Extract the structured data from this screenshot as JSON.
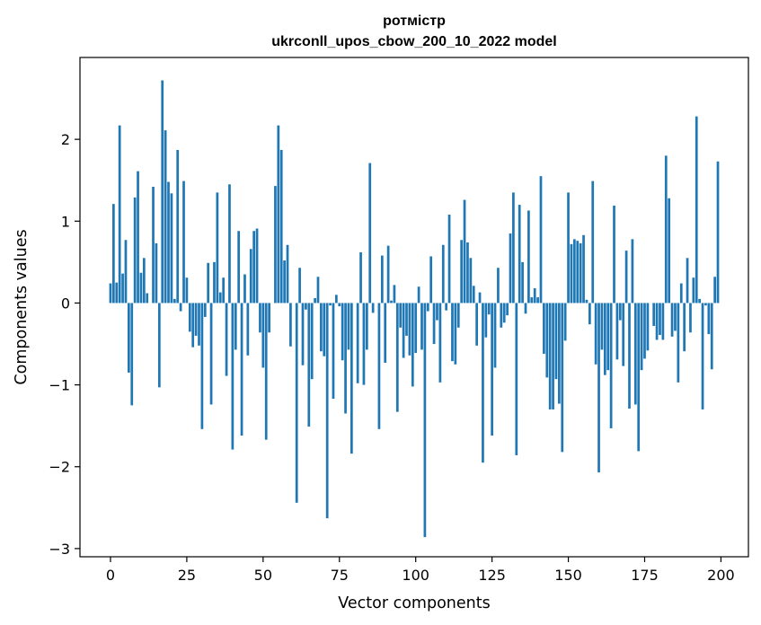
{
  "chart_data": {
    "type": "bar",
    "title_line1": "ротмістр",
    "title_line2": "ukrconll_upos_cbow_200_10_2022 model",
    "xlabel": "Vector components",
    "ylabel": "Components values",
    "xlim": [
      -10,
      209
    ],
    "ylim": [
      -3.1,
      3.0
    ],
    "xticks": [
      0,
      25,
      50,
      75,
      100,
      125,
      150,
      175,
      200
    ],
    "yticks": [
      -3,
      -2,
      -1,
      0,
      1,
      2
    ],
    "ytick_labels": [
      "−3",
      "−2",
      "−1",
      "0",
      "1",
      "2"
    ],
    "bar_color": "#1f77b4",
    "values": [
      0.24,
      1.21,
      0.25,
      2.17,
      0.36,
      0.77,
      -0.85,
      -1.25,
      1.29,
      1.61,
      0.37,
      0.55,
      0.12,
      0.0,
      1.42,
      0.73,
      -1.03,
      2.72,
      2.11,
      1.48,
      1.34,
      0.05,
      1.87,
      -0.1,
      1.49,
      0.31,
      -0.35,
      -0.54,
      -0.4,
      -0.52,
      -1.54,
      -0.17,
      0.49,
      -1.24,
      0.5,
      1.35,
      0.13,
      0.31,
      -0.89,
      1.45,
      -1.79,
      -0.57,
      0.88,
      -1.62,
      0.35,
      -0.64,
      0.66,
      0.88,
      0.91,
      -0.36,
      -0.79,
      -1.67,
      -0.36,
      0.0,
      1.43,
      2.17,
      1.87,
      0.52,
      0.71,
      -0.53,
      0.0,
      -2.44,
      0.43,
      -0.76,
      -0.08,
      -1.51,
      -0.93,
      0.06,
      0.32,
      -0.59,
      -0.65,
      -2.63,
      -0.03,
      -1.17,
      0.1,
      -0.04,
      -0.7,
      -1.35,
      -0.57,
      -1.84,
      0.0,
      -0.98,
      0.62,
      -1.0,
      -0.57,
      1.71,
      -0.12,
      0.0,
      -1.54,
      0.58,
      -0.73,
      0.7,
      0.03,
      0.22,
      -1.33,
      -0.3,
      -0.67,
      -0.4,
      -0.64,
      -1.02,
      -0.61,
      0.2,
      -0.57,
      -2.86,
      -0.1,
      0.57,
      -0.5,
      -0.21,
      -0.97,
      0.71,
      -0.09,
      1.08,
      -0.71,
      -0.75,
      -0.3,
      0.77,
      1.26,
      0.74,
      0.55,
      0.21,
      -0.52,
      0.13,
      -1.95,
      -0.42,
      -0.14,
      -1.62,
      -0.79,
      0.43,
      -0.3,
      -0.24,
      -0.15,
      0.85,
      1.35,
      -1.86,
      1.2,
      0.5,
      -0.13,
      1.13,
      0.07,
      0.18,
      0.07,
      1.55,
      -0.62,
      -0.91,
      -1.3,
      -1.3,
      -0.93,
      -1.23,
      -1.82,
      -0.46,
      1.35,
      0.72,
      0.78,
      0.76,
      0.73,
      0.83,
      0.04,
      -0.26,
      1.49,
      -0.75,
      -2.07,
      -0.57,
      -0.88,
      -0.82,
      -1.53,
      1.19,
      -0.69,
      -0.21,
      -0.77,
      0.64,
      -1.29,
      0.78,
      -1.24,
      -1.81,
      -0.82,
      -0.68,
      -0.58,
      0.0,
      -0.28,
      -0.45,
      -0.39,
      -0.45,
      1.8,
      1.28,
      -0.41,
      -0.34,
      -0.97,
      0.24,
      -0.59,
      0.55,
      -0.36,
      0.31,
      2.28,
      0.05,
      -1.3,
      -0.03,
      -0.38,
      -0.81,
      0.32,
      1.73
    ]
  }
}
